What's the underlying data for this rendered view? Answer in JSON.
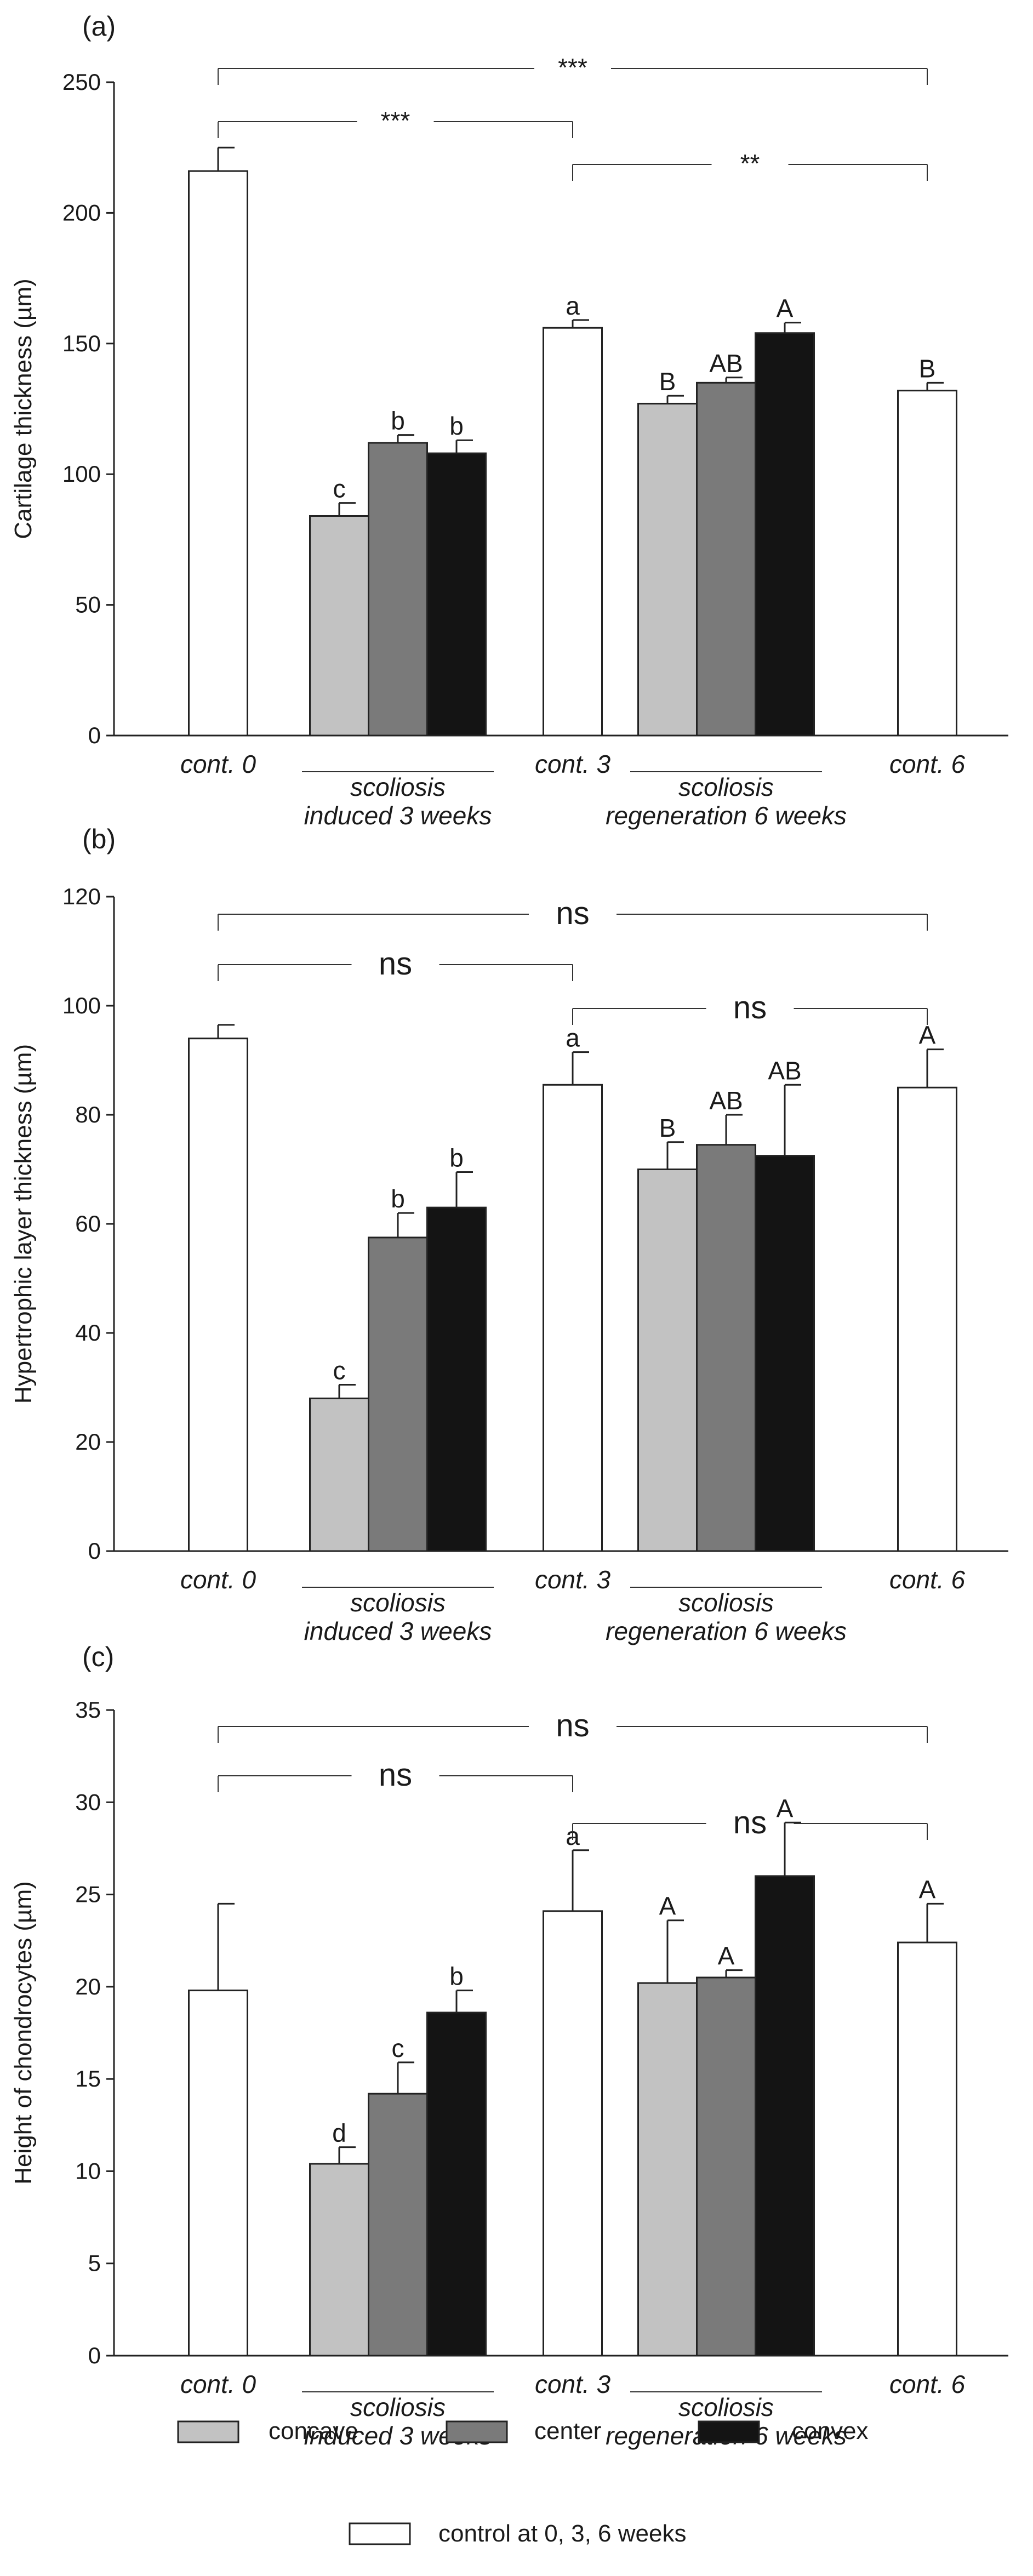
{
  "chart_data": [
    {
      "type": "bar",
      "panel": "(a)",
      "ylabel": "Cartilage thickness (µm)",
      "ylim": [
        0,
        250
      ],
      "yticks": [
        0,
        50,
        100,
        150,
        200,
        250
      ],
      "categories": [
        "cont. 0",
        "scoliosis induced 3 weeks",
        "cont. 3",
        "scoliosis regeneration 6 weeks",
        "cont. 6"
      ],
      "category_labels": [
        {
          "lines": [
            "cont. 0"
          ],
          "underlined": false
        },
        {
          "lines": [
            "scoliosis",
            "induced 3 weeks"
          ],
          "underlined": true
        },
        {
          "lines": [
            "cont. 3"
          ],
          "underlined": false
        },
        {
          "lines": [
            "scoliosis",
            "regeneration 6 weeks"
          ],
          "underlined": true
        },
        {
          "lines": [
            "cont. 6"
          ],
          "underlined": false
        }
      ],
      "bars": [
        {
          "group": 0,
          "series": "control",
          "value": 216,
          "error": 9,
          "letter": ""
        },
        {
          "group": 1,
          "series": "concave",
          "value": 84,
          "error": 5,
          "letter": "c"
        },
        {
          "group": 1,
          "series": "center",
          "value": 112,
          "error": 3,
          "letter": "b"
        },
        {
          "group": 1,
          "series": "convex",
          "value": 108,
          "error": 5,
          "letter": "b"
        },
        {
          "group": 2,
          "series": "control",
          "value": 156,
          "error": 3,
          "letter": "a"
        },
        {
          "group": 3,
          "series": "concave",
          "value": 127,
          "error": 3,
          "letter": "B"
        },
        {
          "group": 3,
          "series": "center",
          "value": 135,
          "error": 2,
          "letter": "AB"
        },
        {
          "group": 3,
          "series": "convex",
          "value": 154,
          "error": 4,
          "letter": "A"
        },
        {
          "group": 4,
          "series": "control",
          "value": 132,
          "error": 3,
          "letter": "B"
        }
      ],
      "significance": [
        {
          "from": 0,
          "to": 4,
          "label": "***",
          "level": 0
        },
        {
          "from": 0,
          "to": 2,
          "label": "***",
          "level": 1
        },
        {
          "from": 2,
          "to": 4,
          "label": "**",
          "level": 2
        }
      ]
    },
    {
      "type": "bar",
      "panel": "(b)",
      "ylabel": "Hypertrophic layer thickness (µm)",
      "ylim": [
        0,
        120
      ],
      "yticks": [
        0,
        20,
        40,
        60,
        80,
        100,
        120
      ],
      "categories": [
        "cont. 0",
        "scoliosis induced 3 weeks",
        "cont. 3",
        "scoliosis regeneration 6 weeks",
        "cont. 6"
      ],
      "category_labels": [
        {
          "lines": [
            "cont. 0"
          ],
          "underlined": false
        },
        {
          "lines": [
            "scoliosis",
            "induced 3 weeks"
          ],
          "underlined": true
        },
        {
          "lines": [
            "cont. 3"
          ],
          "underlined": false
        },
        {
          "lines": [
            "scoliosis",
            "regeneration 6 weeks"
          ],
          "underlined": true
        },
        {
          "lines": [
            "cont. 6"
          ],
          "underlined": false
        }
      ],
      "bars": [
        {
          "group": 0,
          "series": "control",
          "value": 94,
          "error": 2.5,
          "letter": ""
        },
        {
          "group": 1,
          "series": "concave",
          "value": 28,
          "error": 2.5,
          "letter": "c"
        },
        {
          "group": 1,
          "series": "center",
          "value": 57.5,
          "error": 4.5,
          "letter": "b"
        },
        {
          "group": 1,
          "series": "convex",
          "value": 63,
          "error": 6.5,
          "letter": "b"
        },
        {
          "group": 2,
          "series": "control",
          "value": 85.5,
          "error": 6,
          "letter": "a"
        },
        {
          "group": 3,
          "series": "concave",
          "value": 70,
          "error": 5,
          "letter": "B"
        },
        {
          "group": 3,
          "series": "center",
          "value": 74.5,
          "error": 5.5,
          "letter": "AB"
        },
        {
          "group": 3,
          "series": "convex",
          "value": 72.5,
          "error": 13,
          "letter": "AB"
        },
        {
          "group": 4,
          "series": "control",
          "value": 85,
          "error": 7,
          "letter": "A"
        }
      ],
      "significance": [
        {
          "from": 0,
          "to": 4,
          "label": "ns",
          "level": 0
        },
        {
          "from": 0,
          "to": 2,
          "label": "ns",
          "level": 1
        },
        {
          "from": 2,
          "to": 4,
          "label": "ns",
          "level": 2
        }
      ]
    },
    {
      "type": "bar",
      "panel": "(c)",
      "ylabel": "Height of chondrocytes (µm)",
      "ylim": [
        0,
        35
      ],
      "yticks": [
        0,
        5,
        10,
        15,
        20,
        25,
        30,
        35
      ],
      "categories": [
        "cont. 0",
        "scoliosis induced 3 weeks",
        "cont. 3",
        "scoliosis regeneration 6 weeks",
        "cont. 6"
      ],
      "category_labels": [
        {
          "lines": [
            "cont. 0"
          ],
          "underlined": false
        },
        {
          "lines": [
            "scoliosis",
            "induced 3 weeks"
          ],
          "underlined": true
        },
        {
          "lines": [
            "cont. 3"
          ],
          "underlined": false
        },
        {
          "lines": [
            "scoliosis",
            "regeneration 6 weeks"
          ],
          "underlined": true
        },
        {
          "lines": [
            "cont. 6"
          ],
          "underlined": false
        }
      ],
      "bars": [
        {
          "group": 0,
          "series": "control",
          "value": 19.8,
          "error": 4.7,
          "letter": ""
        },
        {
          "group": 1,
          "series": "concave",
          "value": 10.4,
          "error": 0.9,
          "letter": "d"
        },
        {
          "group": 1,
          "series": "center",
          "value": 14.2,
          "error": 1.7,
          "letter": "c"
        },
        {
          "group": 1,
          "series": "convex",
          "value": 18.6,
          "error": 1.2,
          "letter": "b"
        },
        {
          "group": 2,
          "series": "control",
          "value": 24.1,
          "error": 3.3,
          "letter": "a"
        },
        {
          "group": 3,
          "series": "concave",
          "value": 20.2,
          "error": 3.4,
          "letter": "A"
        },
        {
          "group": 3,
          "series": "center",
          "value": 20.5,
          "error": 0.4,
          "letter": "A"
        },
        {
          "group": 3,
          "series": "convex",
          "value": 26,
          "error": 2.9,
          "letter": "A"
        },
        {
          "group": 4,
          "series": "control",
          "value": 22.4,
          "error": 2.1,
          "letter": "A"
        }
      ],
      "significance": [
        {
          "from": 0,
          "to": 4,
          "label": "ns",
          "level": 0
        },
        {
          "from": 0,
          "to": 2,
          "label": "ns",
          "level": 1
        },
        {
          "from": 2,
          "to": 4,
          "label": "ns",
          "level": 2
        }
      ]
    }
  ],
  "series_styles": {
    "concave": "#c2c2c2",
    "center": "#7a7a7a",
    "convex": "#141414",
    "control": "#ffffff"
  },
  "legend": [
    {
      "series": "concave",
      "label": "concave"
    },
    {
      "series": "center",
      "label": "center"
    },
    {
      "series": "convex",
      "label": "convex"
    },
    {
      "series": "control",
      "label": "control at 0, 3, 6 weeks"
    }
  ]
}
